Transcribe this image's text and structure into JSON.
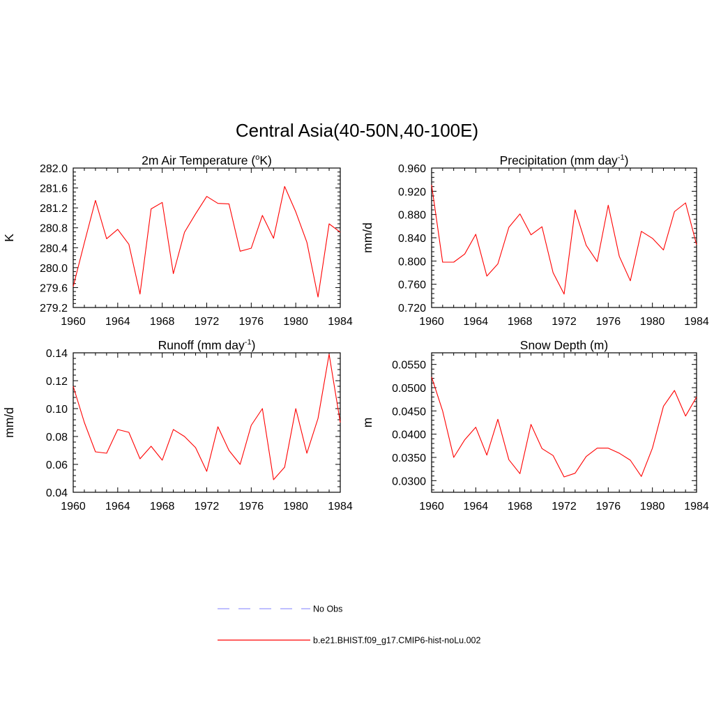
{
  "figure": {
    "title": "Central Asia(40-50N,40-100E)"
  },
  "legend": {
    "items": [
      {
        "label": "No Obs",
        "color": "#9999ff",
        "style": "dashed"
      },
      {
        "label": "b.e21.BHIST.f09_g17.CMIP6-hist-noLu.002",
        "color": "#ff0000",
        "style": "solid"
      }
    ]
  },
  "chart_data": [
    {
      "type": "line",
      "title": "2m Air Temperature (°K)",
      "title_parts": [
        "2m Air Temperature (",
        "o",
        "K)"
      ],
      "ylabel": "K",
      "xlim": [
        1960,
        1984
      ],
      "ylim": [
        279.2,
        282.0
      ],
      "xticks": [
        1960,
        1964,
        1968,
        1972,
        1976,
        1980,
        1984
      ],
      "yticks": [
        "279.2",
        "279.6",
        "280.0",
        "280.4",
        "280.8",
        "281.2",
        "281.6",
        "282.0"
      ],
      "series": [
        {
          "color": "#ff0000",
          "x": [
            1960,
            1961,
            1962,
            1963,
            1964,
            1965,
            1966,
            1967,
            1968,
            1969,
            1970,
            1971,
            1972,
            1973,
            1974,
            1975,
            1976,
            1977,
            1978,
            1979,
            1980,
            1981,
            1982,
            1983,
            1984
          ],
          "y": [
            279.62,
            280.5,
            281.35,
            280.58,
            280.77,
            280.47,
            279.47,
            281.18,
            281.31,
            279.88,
            280.71,
            281.08,
            281.43,
            281.29,
            281.28,
            280.33,
            280.39,
            281.05,
            280.59,
            281.63,
            281.12,
            280.51,
            279.41,
            280.88,
            280.71
          ]
        }
      ]
    },
    {
      "type": "line",
      "title": "Precipitation (mm day-1)",
      "title_parts": [
        "Precipitation (mm day",
        "-1",
        ")"
      ],
      "ylabel": "mm/d",
      "xlim": [
        1960,
        1984
      ],
      "ylim": [
        0.72,
        0.96
      ],
      "xticks": [
        1960,
        1964,
        1968,
        1972,
        1976,
        1980,
        1984
      ],
      "yticks": [
        "0.720",
        "0.760",
        "0.800",
        "0.840",
        "0.880",
        "0.920",
        "0.960"
      ],
      "series": [
        {
          "color": "#ff0000",
          "x": [
            1960,
            1961,
            1962,
            1963,
            1964,
            1965,
            1966,
            1967,
            1968,
            1969,
            1970,
            1971,
            1972,
            1973,
            1974,
            1975,
            1976,
            1977,
            1978,
            1979,
            1980,
            1981,
            1982,
            1983,
            1984
          ],
          "y": [
            0.931,
            0.798,
            0.798,
            0.812,
            0.846,
            0.774,
            0.795,
            0.858,
            0.881,
            0.845,
            0.859,
            0.78,
            0.743,
            0.888,
            0.827,
            0.799,
            0.896,
            0.808,
            0.766,
            0.851,
            0.839,
            0.819,
            0.885,
            0.9,
            0.828
          ]
        }
      ]
    },
    {
      "type": "line",
      "title": "Runoff (mm day-1)",
      "title_parts": [
        "Runoff (mm day",
        "-1",
        ")"
      ],
      "ylabel": "mm/d",
      "xlim": [
        1960,
        1984
      ],
      "ylim": [
        0.04,
        0.14
      ],
      "xticks": [
        1960,
        1964,
        1968,
        1972,
        1976,
        1980,
        1984
      ],
      "yticks": [
        "0.04",
        "0.06",
        "0.08",
        "0.10",
        "0.12",
        "0.14"
      ],
      "series": [
        {
          "color": "#ff0000",
          "x": [
            1960,
            1961,
            1962,
            1963,
            1964,
            1965,
            1966,
            1967,
            1968,
            1969,
            1970,
            1971,
            1972,
            1973,
            1974,
            1975,
            1976,
            1977,
            1978,
            1979,
            1980,
            1981,
            1982,
            1983,
            1984
          ],
          "y": [
            0.116,
            0.09,
            0.069,
            0.068,
            0.085,
            0.083,
            0.064,
            0.073,
            0.063,
            0.085,
            0.08,
            0.072,
            0.055,
            0.087,
            0.07,
            0.06,
            0.088,
            0.1,
            0.049,
            0.058,
            0.1,
            0.068,
            0.093,
            0.139,
            0.09
          ]
        }
      ]
    },
    {
      "type": "line",
      "title": "Snow Depth (m)",
      "title_parts": [
        "Snow Depth (m)"
      ],
      "ylabel": "m",
      "xlim": [
        1960,
        1984
      ],
      "ylim": [
        0.0275,
        0.0575
      ],
      "xticks": [
        1960,
        1964,
        1968,
        1972,
        1976,
        1980,
        1984
      ],
      "yticks": [
        "0.0300",
        "0.0350",
        "0.0400",
        "0.0450",
        "0.0500",
        "0.0550"
      ],
      "series": [
        {
          "color": "#ff0000",
          "x": [
            1960,
            1961,
            1962,
            1963,
            1964,
            1965,
            1966,
            1967,
            1968,
            1969,
            1970,
            1971,
            1972,
            1973,
            1974,
            1975,
            1976,
            1977,
            1978,
            1979,
            1980,
            1981,
            1982,
            1983,
            1984
          ],
          "y": [
            0.0523,
            0.045,
            0.035,
            0.0388,
            0.0415,
            0.0355,
            0.0432,
            0.0345,
            0.0315,
            0.0421,
            0.0369,
            0.0354,
            0.0308,
            0.0316,
            0.0352,
            0.037,
            0.037,
            0.0359,
            0.0344,
            0.0309,
            0.037,
            0.046,
            0.0494,
            0.0439,
            0.048
          ]
        }
      ]
    }
  ]
}
